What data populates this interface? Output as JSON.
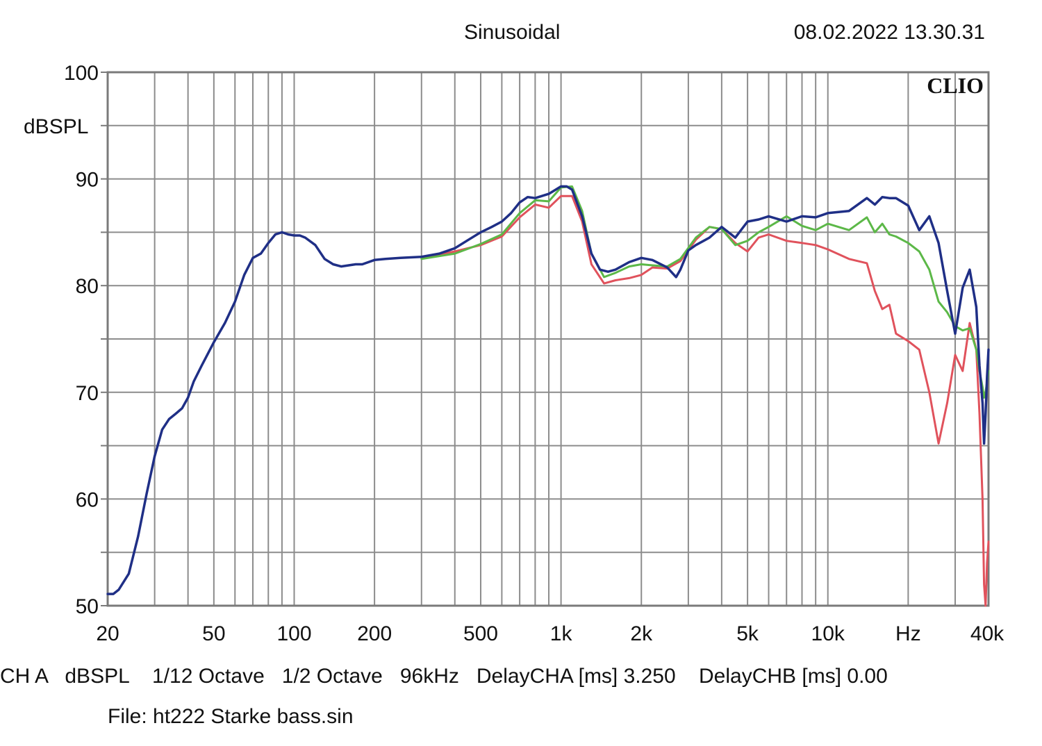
{
  "header": {
    "mode": "Sinusoidal",
    "timestamp": "08.02.2022 13.30.31",
    "brand": "CLIO"
  },
  "footer": {
    "line1": "CH A   dBSPL    1/12 Octave   1/2 Octave   96kHz   DelayCHA [ms] 3.250    DelayCHB [ms] 0.00",
    "file": "File: ht222 Starke bass.sin"
  },
  "chart_data": {
    "type": "line",
    "x_scale": "log",
    "xlim": [
      20,
      40000
    ],
    "ylim": [
      50,
      100
    ],
    "grid": true,
    "y_unit_label": "dBSPL",
    "y_ticks": [
      100,
      90,
      80,
      70,
      60,
      50
    ],
    "x_ticks": [
      {
        "value": 20,
        "label": "20"
      },
      {
        "value": 50,
        "label": "50"
      },
      {
        "value": 100,
        "label": "100"
      },
      {
        "value": 200,
        "label": "200"
      },
      {
        "value": 500,
        "label": "500"
      },
      {
        "value": 1000,
        "label": "1k"
      },
      {
        "value": 2000,
        "label": "2k"
      },
      {
        "value": 5000,
        "label": "5k"
      },
      {
        "value": 10000,
        "label": "10k"
      },
      {
        "value": 20000,
        "label": "Hz"
      },
      {
        "value": 40000,
        "label": "40k"
      }
    ],
    "series": [
      {
        "color": "#e0525c",
        "x": [
          300,
          400,
          500,
          600,
          700,
          800,
          900,
          1000,
          1100,
          1200,
          1300,
          1450,
          1600,
          1800,
          2000,
          2200,
          2500,
          2800,
          3200,
          3600,
          4000,
          4500,
          5000,
          5500,
          6000,
          7000,
          8000,
          9000,
          10000,
          12000,
          14000,
          15000,
          16000,
          17000,
          18000,
          20000,
          22000,
          24000,
          26000,
          28000,
          30000,
          32000,
          34000,
          36000,
          37000,
          38000,
          38500,
          39000,
          39500,
          40000
        ],
        "y": [
          82.6,
          83.2,
          83.8,
          84.6,
          86.4,
          87.6,
          87.3,
          88.4,
          88.4,
          86,
          82,
          80.2,
          80.5,
          80.7,
          81,
          81.7,
          81.6,
          82.3,
          84.3,
          85.5,
          85.3,
          84,
          83.2,
          84.5,
          84.8,
          84.2,
          84,
          83.8,
          83.4,
          82.5,
          82.1,
          79.5,
          77.8,
          78.2,
          75.5,
          74.8,
          74,
          70,
          65.2,
          69,
          73.5,
          72,
          76.5,
          74,
          68,
          60,
          52,
          49,
          54,
          56
        ]
      },
      {
        "color": "#5cb848",
        "x": [
          300,
          400,
          500,
          600,
          700,
          800,
          900,
          1000,
          1100,
          1200,
          1300,
          1450,
          1600,
          1800,
          2000,
          2200,
          2500,
          2800,
          3200,
          3600,
          4000,
          4500,
          5000,
          5500,
          6000,
          7000,
          8000,
          9000,
          10000,
          12000,
          14000,
          15000,
          16000,
          17000,
          18000,
          20000,
          22000,
          24000,
          26000,
          28000,
          30000,
          32000,
          34000,
          36000,
          37000,
          38000,
          38500,
          39000,
          39500,
          40000
        ],
        "y": [
          82.5,
          83,
          83.9,
          84.8,
          86.8,
          88,
          87.9,
          89.2,
          89.3,
          87,
          83,
          80.8,
          81.2,
          81.8,
          82,
          81.9,
          81.8,
          82.5,
          84.5,
          85.5,
          85.3,
          83.8,
          84.2,
          85,
          85.5,
          86.5,
          85.6,
          85.2,
          85.8,
          85.2,
          86.4,
          85,
          85.8,
          84.8,
          84.6,
          84,
          83.2,
          81.5,
          78.5,
          77.5,
          76.2,
          75.8,
          76,
          74,
          72,
          70.5,
          69.5,
          70,
          71,
          72
        ]
      },
      {
        "color": "#1f2f86",
        "x": [
          20,
          21,
          22,
          24,
          26,
          28,
          30,
          32,
          34,
          36,
          38,
          40,
          42,
          45,
          50,
          55,
          60,
          65,
          70,
          75,
          80,
          85,
          90,
          95,
          100,
          105,
          110,
          120,
          130,
          140,
          150,
          160,
          170,
          180,
          200,
          220,
          250,
          300,
          350,
          400,
          450,
          500,
          550,
          600,
          650,
          700,
          750,
          800,
          900,
          1000,
          1050,
          1100,
          1200,
          1300,
          1400,
          1500,
          1600,
          1800,
          2000,
          2200,
          2500,
          2700,
          2800,
          3000,
          3200,
          3600,
          4000,
          4500,
          5000,
          5500,
          6000,
          7000,
          8000,
          9000,
          10000,
          12000,
          14000,
          15000,
          16000,
          17000,
          18000,
          20000,
          22000,
          24000,
          26000,
          28000,
          30000,
          32000,
          34000,
          36000,
          37000,
          38000,
          38500,
          39000,
          39500,
          40000
        ],
        "y": [
          51.1,
          51.1,
          51.5,
          53,
          56.5,
          60.5,
          64,
          66.5,
          67.5,
          68,
          68.5,
          69.5,
          71,
          72.5,
          74.7,
          76.5,
          78.5,
          81,
          82.6,
          83,
          84,
          84.8,
          85,
          84.8,
          84.7,
          84.7,
          84.5,
          83.8,
          82.5,
          82,
          81.8,
          81.9,
          82,
          82,
          82.4,
          82.5,
          82.6,
          82.7,
          83,
          83.5,
          84.3,
          85,
          85.5,
          86,
          86.8,
          87.8,
          88.3,
          88.2,
          88.6,
          89.3,
          89.3,
          89,
          86.5,
          83,
          81.5,
          81.3,
          81.5,
          82.2,
          82.6,
          82.4,
          81.7,
          80.8,
          81.5,
          83.3,
          83.8,
          84.5,
          85.5,
          84.5,
          86,
          86.2,
          86.5,
          86,
          86.5,
          86.4,
          86.8,
          87,
          88.2,
          87.6,
          88.3,
          88.2,
          88.2,
          87.5,
          85.2,
          86.5,
          84,
          79.5,
          75.5,
          79.8,
          81.5,
          78,
          72.5,
          69,
          65.2,
          68,
          71.5,
          74
        ]
      }
    ]
  }
}
